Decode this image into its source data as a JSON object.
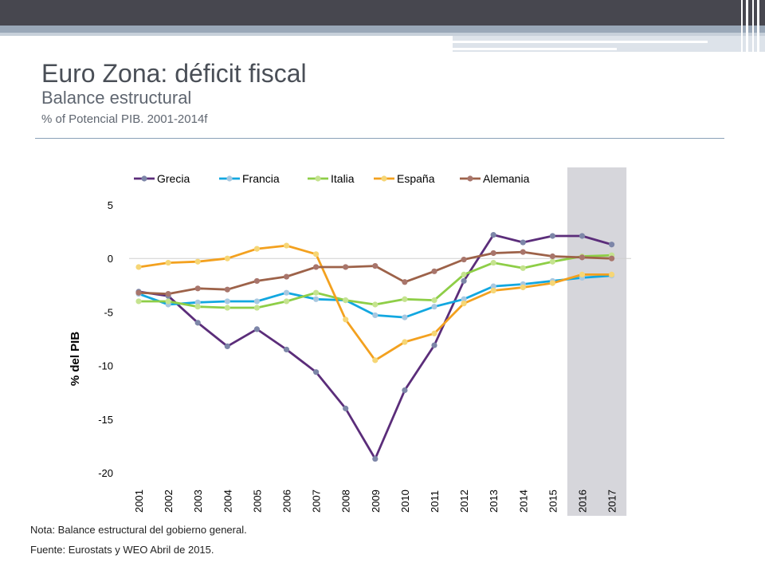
{
  "title": "Euro Zona: déficit fiscal",
  "subtitle": "Balance estructural",
  "subtitle2": "% of Potencial PIB. 2001-2014f",
  "note": "Nota: Balance estructural del gobierno general.",
  "source": "Fuente: Eurostats y WEO Abril de  2015.",
  "chart_data": {
    "type": "line",
    "title": "",
    "xlabel": "",
    "ylabel": "% del PIB",
    "ylim": [
      -20,
      5
    ],
    "yticks": [
      5,
      0,
      -5,
      -10,
      -15,
      -20
    ],
    "grid": false,
    "legend": "top",
    "shaded_range": [
      "2016",
      "2017"
    ],
    "categories": [
      "2001",
      "2002",
      "2003",
      "2004",
      "2005",
      "2006",
      "2007",
      "2008",
      "2009",
      "2010",
      "2011",
      "2012",
      "2013",
      "2014",
      "2015",
      "2016",
      "2017"
    ],
    "series": [
      {
        "name": "Grecia",
        "color": "#5b2d7a",
        "marker": "#7d86a8",
        "values": [
          -3.1,
          -3.5,
          -6.0,
          -8.2,
          -6.6,
          -8.5,
          -10.6,
          -14.0,
          -18.7,
          -12.3,
          -8.1,
          -2.1,
          2.2,
          1.5,
          2.1,
          2.1,
          1.3
        ]
      },
      {
        "name": "Francia",
        "color": "#12a7e0",
        "marker": "#a8c8e0",
        "values": [
          -3.3,
          -4.3,
          -4.1,
          -4.0,
          -4.0,
          -3.2,
          -3.8,
          -3.9,
          -5.3,
          -5.5,
          -4.5,
          -3.8,
          -2.6,
          -2.4,
          -2.1,
          -1.8,
          -1.6
        ]
      },
      {
        "name": "Italia",
        "color": "#8ece47",
        "marker": "#c5e38f",
        "values": [
          -4.0,
          -4.0,
          -4.5,
          -4.6,
          -4.6,
          -4.0,
          -3.2,
          -3.9,
          -4.3,
          -3.8,
          -3.9,
          -1.5,
          -0.4,
          -0.9,
          -0.3,
          0.2,
          0.3
        ]
      },
      {
        "name": "España",
        "color": "#f3a11f",
        "marker": "#f6d676",
        "values": [
          -0.8,
          -0.4,
          -0.3,
          0.0,
          0.9,
          1.2,
          0.4,
          -5.7,
          -9.5,
          -7.8,
          -7.0,
          -4.2,
          -3.0,
          -2.7,
          -2.3,
          -1.5,
          -1.5
        ]
      },
      {
        "name": "Alemania",
        "color": "#9d6249",
        "marker": "#a8756b",
        "values": [
          -3.2,
          -3.3,
          -2.8,
          -2.9,
          -2.1,
          -1.7,
          -0.8,
          -0.8,
          -0.7,
          -2.2,
          -1.2,
          -0.1,
          0.5,
          0.6,
          0.2,
          0.1,
          0.0
        ]
      }
    ]
  }
}
